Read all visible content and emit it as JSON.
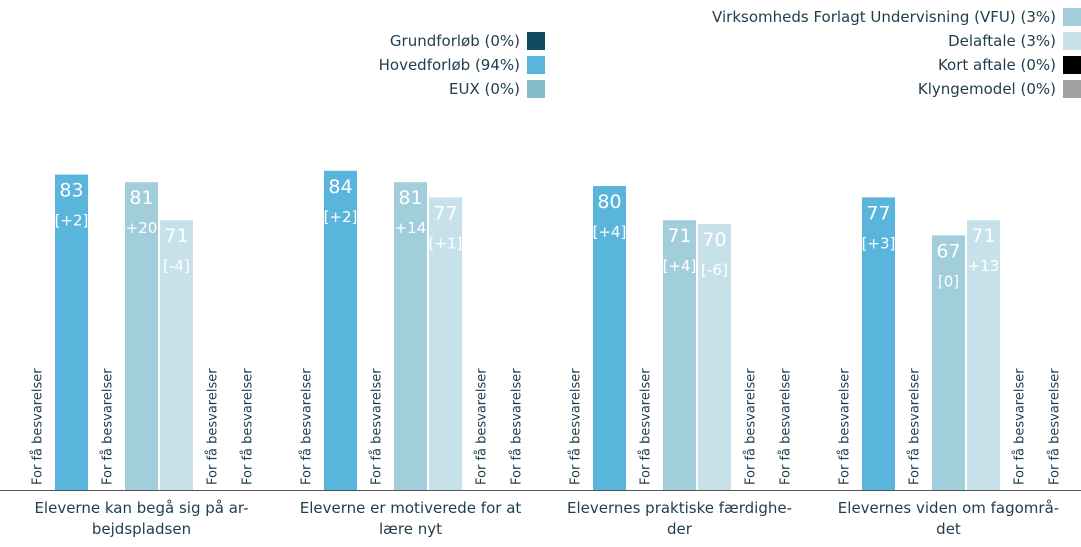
{
  "chart_data": {
    "type": "bar",
    "categories": [
      [
        "Eleverne kan begå sig på ar-",
        "bejdspladsen"
      ],
      [
        "Eleverne er motiverede for at",
        "lære nyt"
      ],
      [
        "Elevernes praktiske færdighe-",
        "der"
      ],
      [
        "Elevernes viden om fagområ-",
        "det"
      ]
    ],
    "insufficient_label": "For få besvarelser",
    "ylim": [
      0,
      100
    ],
    "series": [
      {
        "name": "Grundforløb (0%)",
        "color": "#0f4a5f",
        "values": [
          null,
          null,
          null,
          null
        ]
      },
      {
        "name": "Hovedforløb (94%)",
        "color": "#5ab5dd",
        "values": [
          83,
          84,
          80,
          77
        ],
        "changes": [
          "[+2]",
          "[+2]",
          "[+4]",
          "[+3]"
        ]
      },
      {
        "name": "EUX (0%)",
        "color": "#84bccc",
        "values": [
          null,
          null,
          null,
          null
        ]
      },
      {
        "name": "Virksomheds Forlagt Undervisning (VFU) (3%)",
        "color": "#a2cdda",
        "values": [
          81,
          81,
          71,
          67
        ],
        "changes": [
          "[+20]",
          "[+14]",
          "[+4]",
          "[0]"
        ]
      },
      {
        "name": "Delaftale (3%)",
        "color": "#c6e1ea",
        "values": [
          71,
          77,
          70,
          71
        ],
        "changes": [
          "[-4]",
          "[+1]",
          "[-6]",
          "[+13]"
        ]
      },
      {
        "name": "Kort aftale (0%)",
        "color": "#000000",
        "values": [
          null,
          null,
          null,
          null
        ]
      },
      {
        "name": "Klyngemodel (0%)",
        "color": "#a0a0a0",
        "values": [
          null,
          null,
          null,
          null
        ]
      }
    ]
  }
}
